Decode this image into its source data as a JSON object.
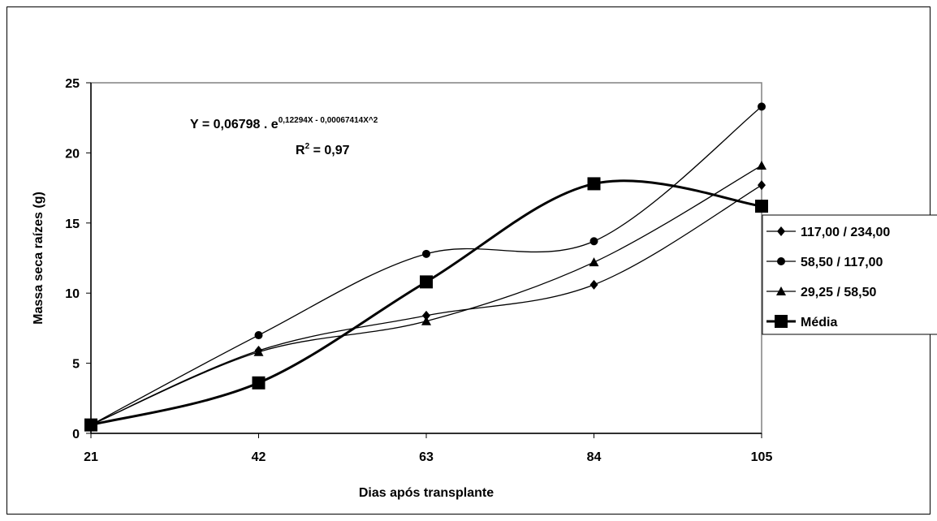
{
  "chart_data": {
    "type": "line",
    "xlabel": "Dias após transplante",
    "ylabel": "Massa seca raízes (g)",
    "x": [
      21,
      42,
      63,
      84,
      105
    ],
    "xticks": [
      "21",
      "42",
      "63",
      "84",
      "105"
    ],
    "xlim": [
      21,
      105
    ],
    "ylim": [
      0,
      25
    ],
    "yticks": [
      0,
      5,
      10,
      15,
      20,
      25
    ],
    "yticklabels": [
      "0",
      "5",
      "10",
      "15",
      "20",
      "25"
    ],
    "grid": false,
    "legend_position": "right",
    "series": [
      {
        "name": "117,00 / 234,00",
        "marker": "diamond",
        "values": [
          0.6,
          5.9,
          8.4,
          10.6,
          17.7
        ],
        "line_weight": "thin"
      },
      {
        "name": "58,50 / 117,00",
        "marker": "circle",
        "values": [
          0.6,
          7.0,
          12.8,
          13.7,
          23.3
        ],
        "line_weight": "thin"
      },
      {
        "name": "29,25 / 58,50",
        "marker": "triangle",
        "values": [
          0.6,
          5.8,
          8.0,
          12.2,
          19.1
        ],
        "line_weight": "thin"
      },
      {
        "name": "Média",
        "marker": "square",
        "values": [
          0.6,
          3.6,
          10.8,
          17.8,
          16.2
        ],
        "line_weight": "bold"
      }
    ],
    "annotations": {
      "equation_prefix": "Y = 0,06798 . e",
      "equation_exponent": "0,12294X - 0,00067414X^2",
      "r2_label": "R",
      "r2_sup": "2",
      "r2_value": " = 0,97"
    }
  }
}
